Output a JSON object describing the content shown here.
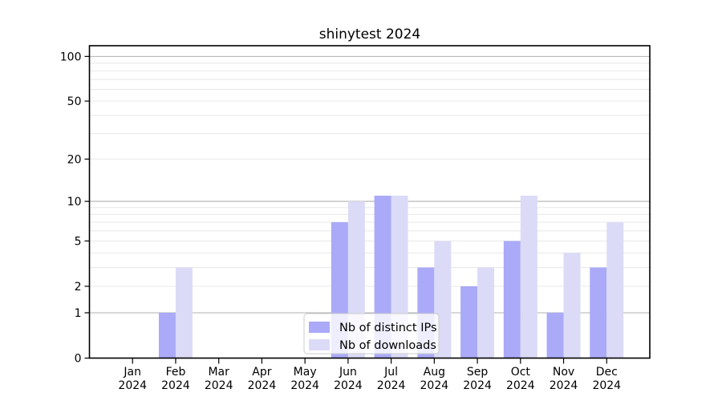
{
  "chart_data": {
    "type": "bar",
    "title": "shinytest 2024",
    "xlabel": "",
    "ylabel": "",
    "categories": [
      "Jan",
      "Feb",
      "Mar",
      "Apr",
      "May",
      "Jun",
      "Jul",
      "Aug",
      "Sep",
      "Oct",
      "Nov",
      "Dec"
    ],
    "category_year": "2024",
    "series": [
      {
        "name": "Nb of distinct IPs",
        "color": "#aaaaf8",
        "values": [
          0,
          1,
          0,
          0,
          0,
          7,
          11,
          3,
          2,
          5,
          1,
          3
        ]
      },
      {
        "name": "Nb of downloads",
        "color": "#dbdbf8",
        "values": [
          0,
          3,
          0,
          0,
          0,
          10,
          11,
          5,
          3,
          11,
          4,
          7
        ]
      }
    ],
    "y_scale": "log1p",
    "ylim": [
      0,
      118
    ],
    "y_tick_values": [
      0,
      1,
      2,
      5,
      10,
      20,
      50,
      100
    ],
    "y_major_gridlines": [
      1,
      10,
      100
    ],
    "y_minor_gridlines": [
      2,
      3,
      4,
      5,
      6,
      7,
      8,
      9,
      20,
      30,
      40,
      50,
      60,
      70,
      80,
      90
    ],
    "grid": "on",
    "legend": {
      "position": "lower-center",
      "entries": [
        "Nb of distinct IPs",
        "Nb of downloads"
      ]
    },
    "colors": {
      "axis": "#000000",
      "text": "#000000",
      "major_grid": "#b0b0b0",
      "minor_grid": "#e8e8e8",
      "legend_border": "#cccccc",
      "legend_bg": "rgba(255,255,255,0.8)",
      "background": "#ffffff"
    }
  }
}
